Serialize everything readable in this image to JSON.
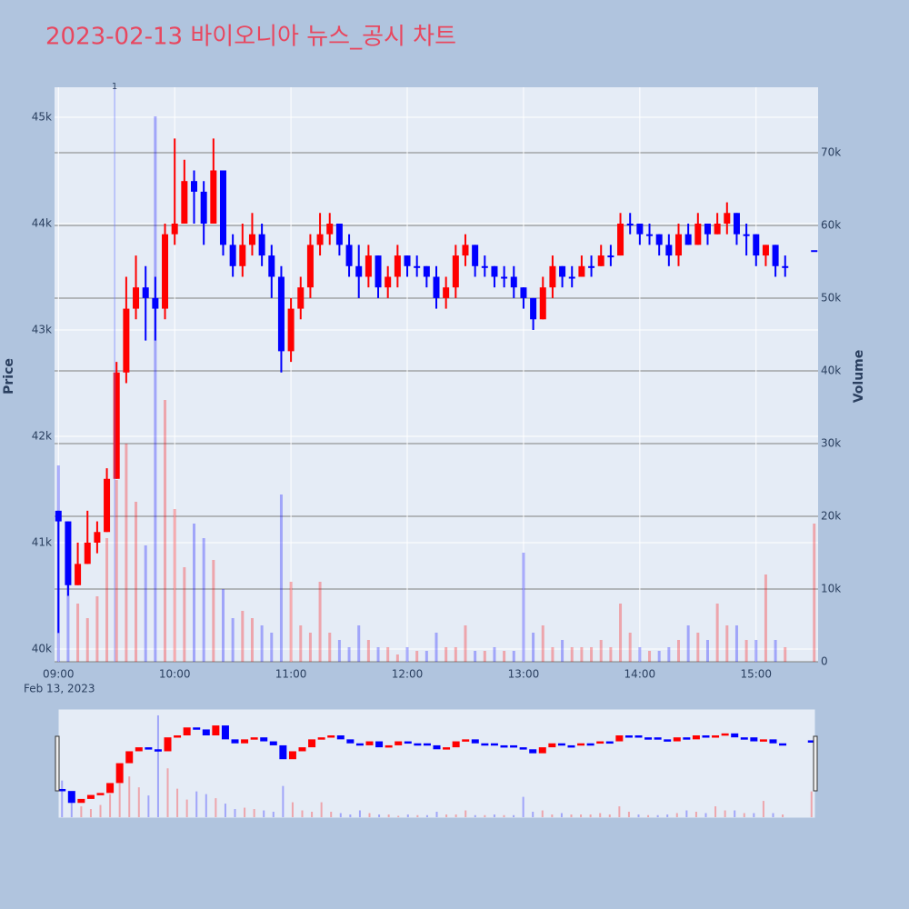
{
  "chart_data": {
    "type": "candlestick",
    "title": "2023-02-13 바이오니아 뉴스_공시 차트",
    "y_axis_label": "Price",
    "y2_axis_label": "Volume",
    "x_date_label": "Feb 13, 2023",
    "increasing_color": "#ff0000",
    "decreasing_color": "#0000ff",
    "x": [
      "09:00",
      "09:05",
      "09:10",
      "09:15",
      "09:20",
      "09:25",
      "09:30",
      "09:35",
      "09:40",
      "09:45",
      "09:50",
      "09:55",
      "10:00",
      "10:05",
      "10:10",
      "10:15",
      "10:20",
      "10:25",
      "10:30",
      "10:35",
      "10:40",
      "10:45",
      "10:50",
      "10:55",
      "11:00",
      "11:05",
      "11:10",
      "11:15",
      "11:20",
      "11:25",
      "11:30",
      "11:35",
      "11:40",
      "11:45",
      "11:50",
      "11:55",
      "12:00",
      "12:05",
      "12:10",
      "12:15",
      "12:20",
      "12:25",
      "12:30",
      "12:35",
      "12:40",
      "12:45",
      "12:50",
      "12:55",
      "13:00",
      "13:05",
      "13:10",
      "13:15",
      "13:20",
      "13:25",
      "13:30",
      "13:35",
      "13:40",
      "13:45",
      "13:50",
      "13:55",
      "14:00",
      "14:05",
      "14:10",
      "14:15",
      "14:20",
      "14:25",
      "14:30",
      "14:35",
      "14:40",
      "14:45",
      "14:50",
      "14:55",
      "15:00",
      "15:05",
      "15:10",
      "15:15",
      "15:30"
    ],
    "open": [
      41300,
      41200,
      40600,
      40800,
      41000,
      41100,
      41600,
      42600,
      43200,
      43400,
      43300,
      43200,
      43900,
      44000,
      44400,
      44300,
      44000,
      44500,
      43800,
      43600,
      43800,
      43900,
      43700,
      43500,
      42800,
      43200,
      43400,
      43800,
      43900,
      44000,
      43800,
      43600,
      43500,
      43700,
      43400,
      43500,
      43700,
      43600,
      43600,
      43500,
      43300,
      43400,
      43700,
      43800,
      43600,
      43600,
      43500,
      43500,
      43400,
      43300,
      43100,
      43400,
      43600,
      43500,
      43500,
      43600,
      43600,
      43700,
      43700,
      44000,
      44000,
      43900,
      43900,
      43800,
      43700,
      43900,
      43800,
      44000,
      43900,
      44000,
      44100,
      43900,
      43900,
      43700,
      43800,
      43600,
      43750
    ],
    "high": [
      41300,
      41200,
      41000,
      41300,
      41200,
      41700,
      42700,
      43500,
      43700,
      43600,
      43500,
      44000,
      44800,
      44600,
      44500,
      44400,
      44800,
      44500,
      43900,
      44000,
      44100,
      44000,
      43800,
      43600,
      43300,
      43500,
      43900,
      44100,
      44100,
      44000,
      43900,
      43800,
      43800,
      43700,
      43600,
      43800,
      43700,
      43700,
      43600,
      43600,
      43500,
      43800,
      43900,
      43800,
      43700,
      43600,
      43600,
      43600,
      43400,
      43300,
      43500,
      43700,
      43600,
      43600,
      43700,
      43700,
      43800,
      43800,
      44100,
      44100,
      44000,
      44000,
      43900,
      43900,
      44000,
      44000,
      44100,
      44000,
      44100,
      44200,
      44100,
      44000,
      43900,
      43800,
      43800,
      43700,
      43750
    ],
    "low": [
      40150,
      40500,
      40600,
      40800,
      40900,
      41100,
      41600,
      42500,
      43100,
      42900,
      42900,
      43100,
      43800,
      44000,
      44000,
      43800,
      44000,
      43700,
      43500,
      43500,
      43700,
      43600,
      43300,
      42600,
      42700,
      43100,
      43300,
      43700,
      43800,
      43700,
      43500,
      43300,
      43400,
      43300,
      43300,
      43400,
      43500,
      43500,
      43400,
      43200,
      43200,
      43300,
      43600,
      43500,
      43500,
      43400,
      43400,
      43300,
      43200,
      43000,
      43100,
      43300,
      43400,
      43400,
      43500,
      43500,
      43600,
      43600,
      43700,
      43900,
      43800,
      43800,
      43700,
      43600,
      43600,
      43800,
      43800,
      43800,
      43900,
      43900,
      43800,
      43700,
      43600,
      43600,
      43500,
      43500,
      43750
    ],
    "close": [
      41200,
      40600,
      40800,
      41000,
      41100,
      41600,
      42600,
      43200,
      43400,
      43300,
      43200,
      43900,
      44000,
      44400,
      44300,
      44000,
      44500,
      43800,
      43600,
      43800,
      43900,
      43700,
      43500,
      42800,
      43200,
      43400,
      43800,
      43900,
      44000,
      43800,
      43600,
      43500,
      43700,
      43400,
      43500,
      43700,
      43600,
      43600,
      43500,
      43300,
      43400,
      43700,
      43800,
      43600,
      43600,
      43500,
      43500,
      43400,
      43300,
      43100,
      43400,
      43600,
      43500,
      43500,
      43600,
      43600,
      43700,
      43700,
      44000,
      44000,
      43900,
      43900,
      43800,
      43700,
      43900,
      43800,
      44000,
      43900,
      44000,
      44100,
      43900,
      43900,
      43700,
      43800,
      43600,
      43600,
      43750
    ],
    "volume": [
      27000,
      11000,
      8000,
      6000,
      9000,
      17000,
      25000,
      30000,
      22000,
      16000,
      75000,
      36000,
      21000,
      13000,
      19000,
      17000,
      14000,
      10000,
      6000,
      7000,
      6000,
      5000,
      4000,
      23000,
      11000,
      5000,
      4000,
      11000,
      4000,
      3000,
      2000,
      5000,
      3000,
      2000,
      2000,
      1000,
      2000,
      1500,
      1500,
      4000,
      2000,
      2000,
      5000,
      1500,
      1500,
      2000,
      1500,
      1500,
      15000,
      4000,
      5000,
      2000,
      3000,
      2000,
      2000,
      2000,
      3000,
      2000,
      8000,
      4000,
      2000,
      1500,
      1500,
      2000,
      3000,
      5000,
      4000,
      3000,
      8000,
      5000,
      5000,
      3000,
      3000,
      12000,
      3000,
      2000,
      19000
    ],
    "annotations": [
      {
        "x": "09:29",
        "text": "1"
      }
    ],
    "xlim": [
      "08:58",
      "15:32"
    ],
    "xticks": [
      "09:00",
      "10:00",
      "11:00",
      "12:00",
      "13:00",
      "14:00",
      "15:00"
    ],
    "ylim": [
      39880,
      45282
    ],
    "yticks": [
      {
        "value": 40000,
        "label": "40k"
      },
      {
        "value": 41000,
        "label": "41k"
      },
      {
        "value": 42000,
        "label": "42k"
      },
      {
        "value": 43000,
        "label": "43k"
      },
      {
        "value": 44000,
        "label": "44k"
      },
      {
        "value": 45000,
        "label": "45k"
      }
    ],
    "y2lim": [
      0,
      79000
    ],
    "y2ticks": [
      0,
      {
        "value": 10000,
        "label": "10k"
      },
      {
        "value": 20000,
        "label": "20k"
      },
      {
        "value": 30000,
        "label": "30k"
      },
      {
        "value": 40000,
        "label": "40k"
      },
      {
        "value": 50000,
        "label": "50k"
      },
      {
        "value": 60000,
        "label": "60k"
      },
      {
        "value": 70000,
        "label": "70k"
      }
    ],
    "grid": true,
    "range_slider": true
  }
}
